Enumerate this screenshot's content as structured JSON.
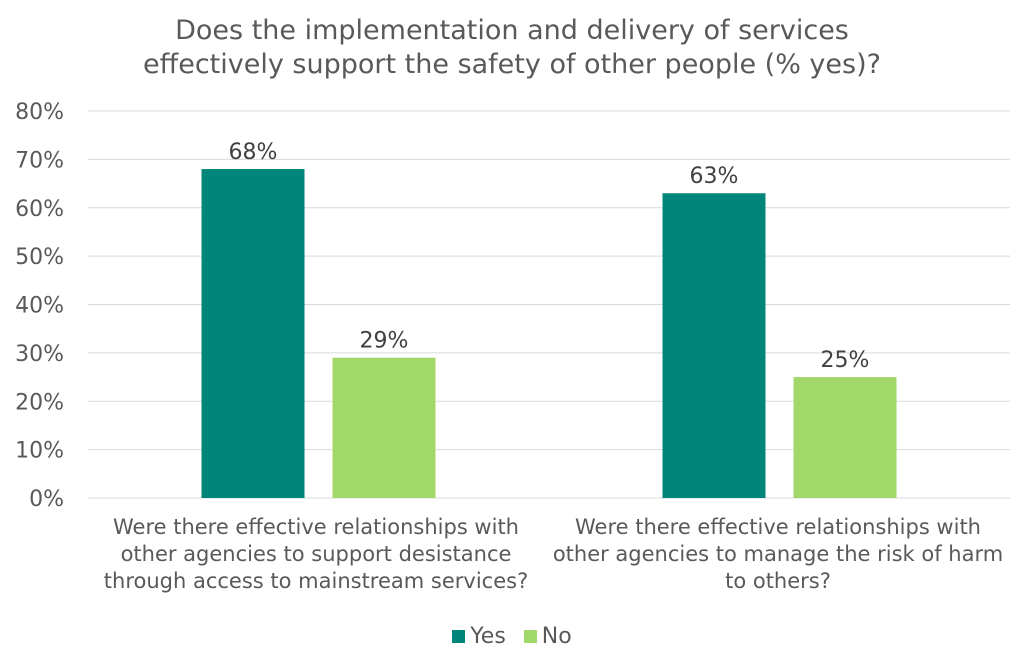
{
  "chart_data": {
    "type": "bar",
    "title": "Does the implementation and delivery of services effectively support the safety of other people (% yes)?",
    "title_lines": [
      "Does the implementation and delivery of services",
      "effectively support the safety of other people (% yes)?"
    ],
    "categories": [
      "Were there effective relationships with other agencies to support desistance through access to mainstream services?",
      "Were there effective relationships with other agencies to manage the risk of harm to others?"
    ],
    "series": [
      {
        "name": "Yes",
        "values": [
          68,
          63
        ],
        "color": "#00857B",
        "labels": [
          "68%",
          "63%"
        ]
      },
      {
        "name": "No",
        "values": [
          29,
          25
        ],
        "color": "#A2D86A",
        "labels": [
          "29%",
          "25%"
        ]
      }
    ],
    "ylim": [
      0,
      80
    ],
    "yticks": [
      "0%",
      "10%",
      "20%",
      "30%",
      "40%",
      "50%",
      "60%",
      "70%",
      "80%"
    ],
    "grid": true,
    "legend": "bottom"
  }
}
